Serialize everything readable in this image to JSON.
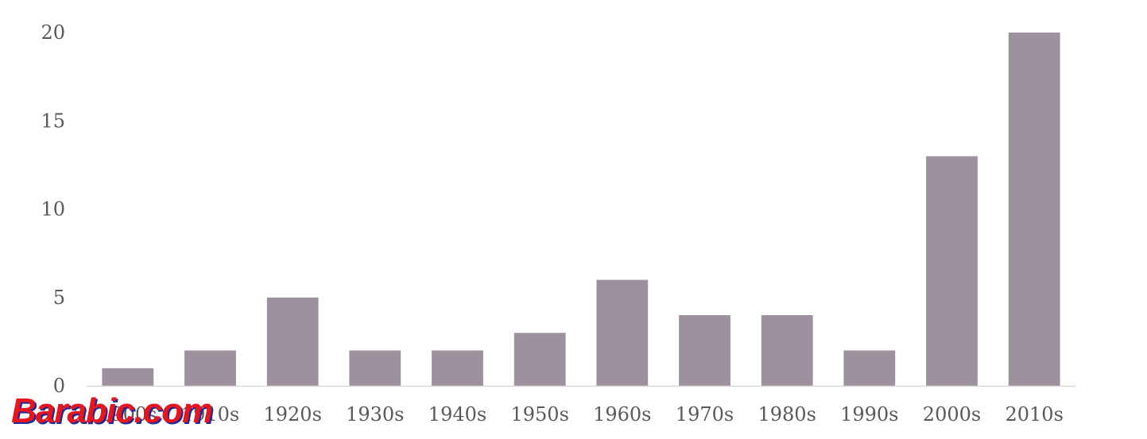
{
  "chart_data": {
    "type": "bar",
    "categories": [
      "1900s",
      "1910s",
      "1920s",
      "1930s",
      "1940s",
      "1950s",
      "1960s",
      "1970s",
      "1980s",
      "1990s",
      "2000s",
      "2010s"
    ],
    "values": [
      1,
      2,
      5,
      2,
      2,
      3,
      6,
      4,
      4,
      2,
      13,
      20
    ],
    "title": "",
    "xlabel": "",
    "ylabel": "",
    "ylim": [
      0,
      20
    ],
    "yticks": [
      0,
      5,
      10,
      15,
      20
    ],
    "grid": false,
    "bar_color": "#9d919e"
  },
  "watermark": {
    "text": "Barabic.com",
    "color": "#e8161c",
    "shadow_color": "#1a2a9a"
  }
}
